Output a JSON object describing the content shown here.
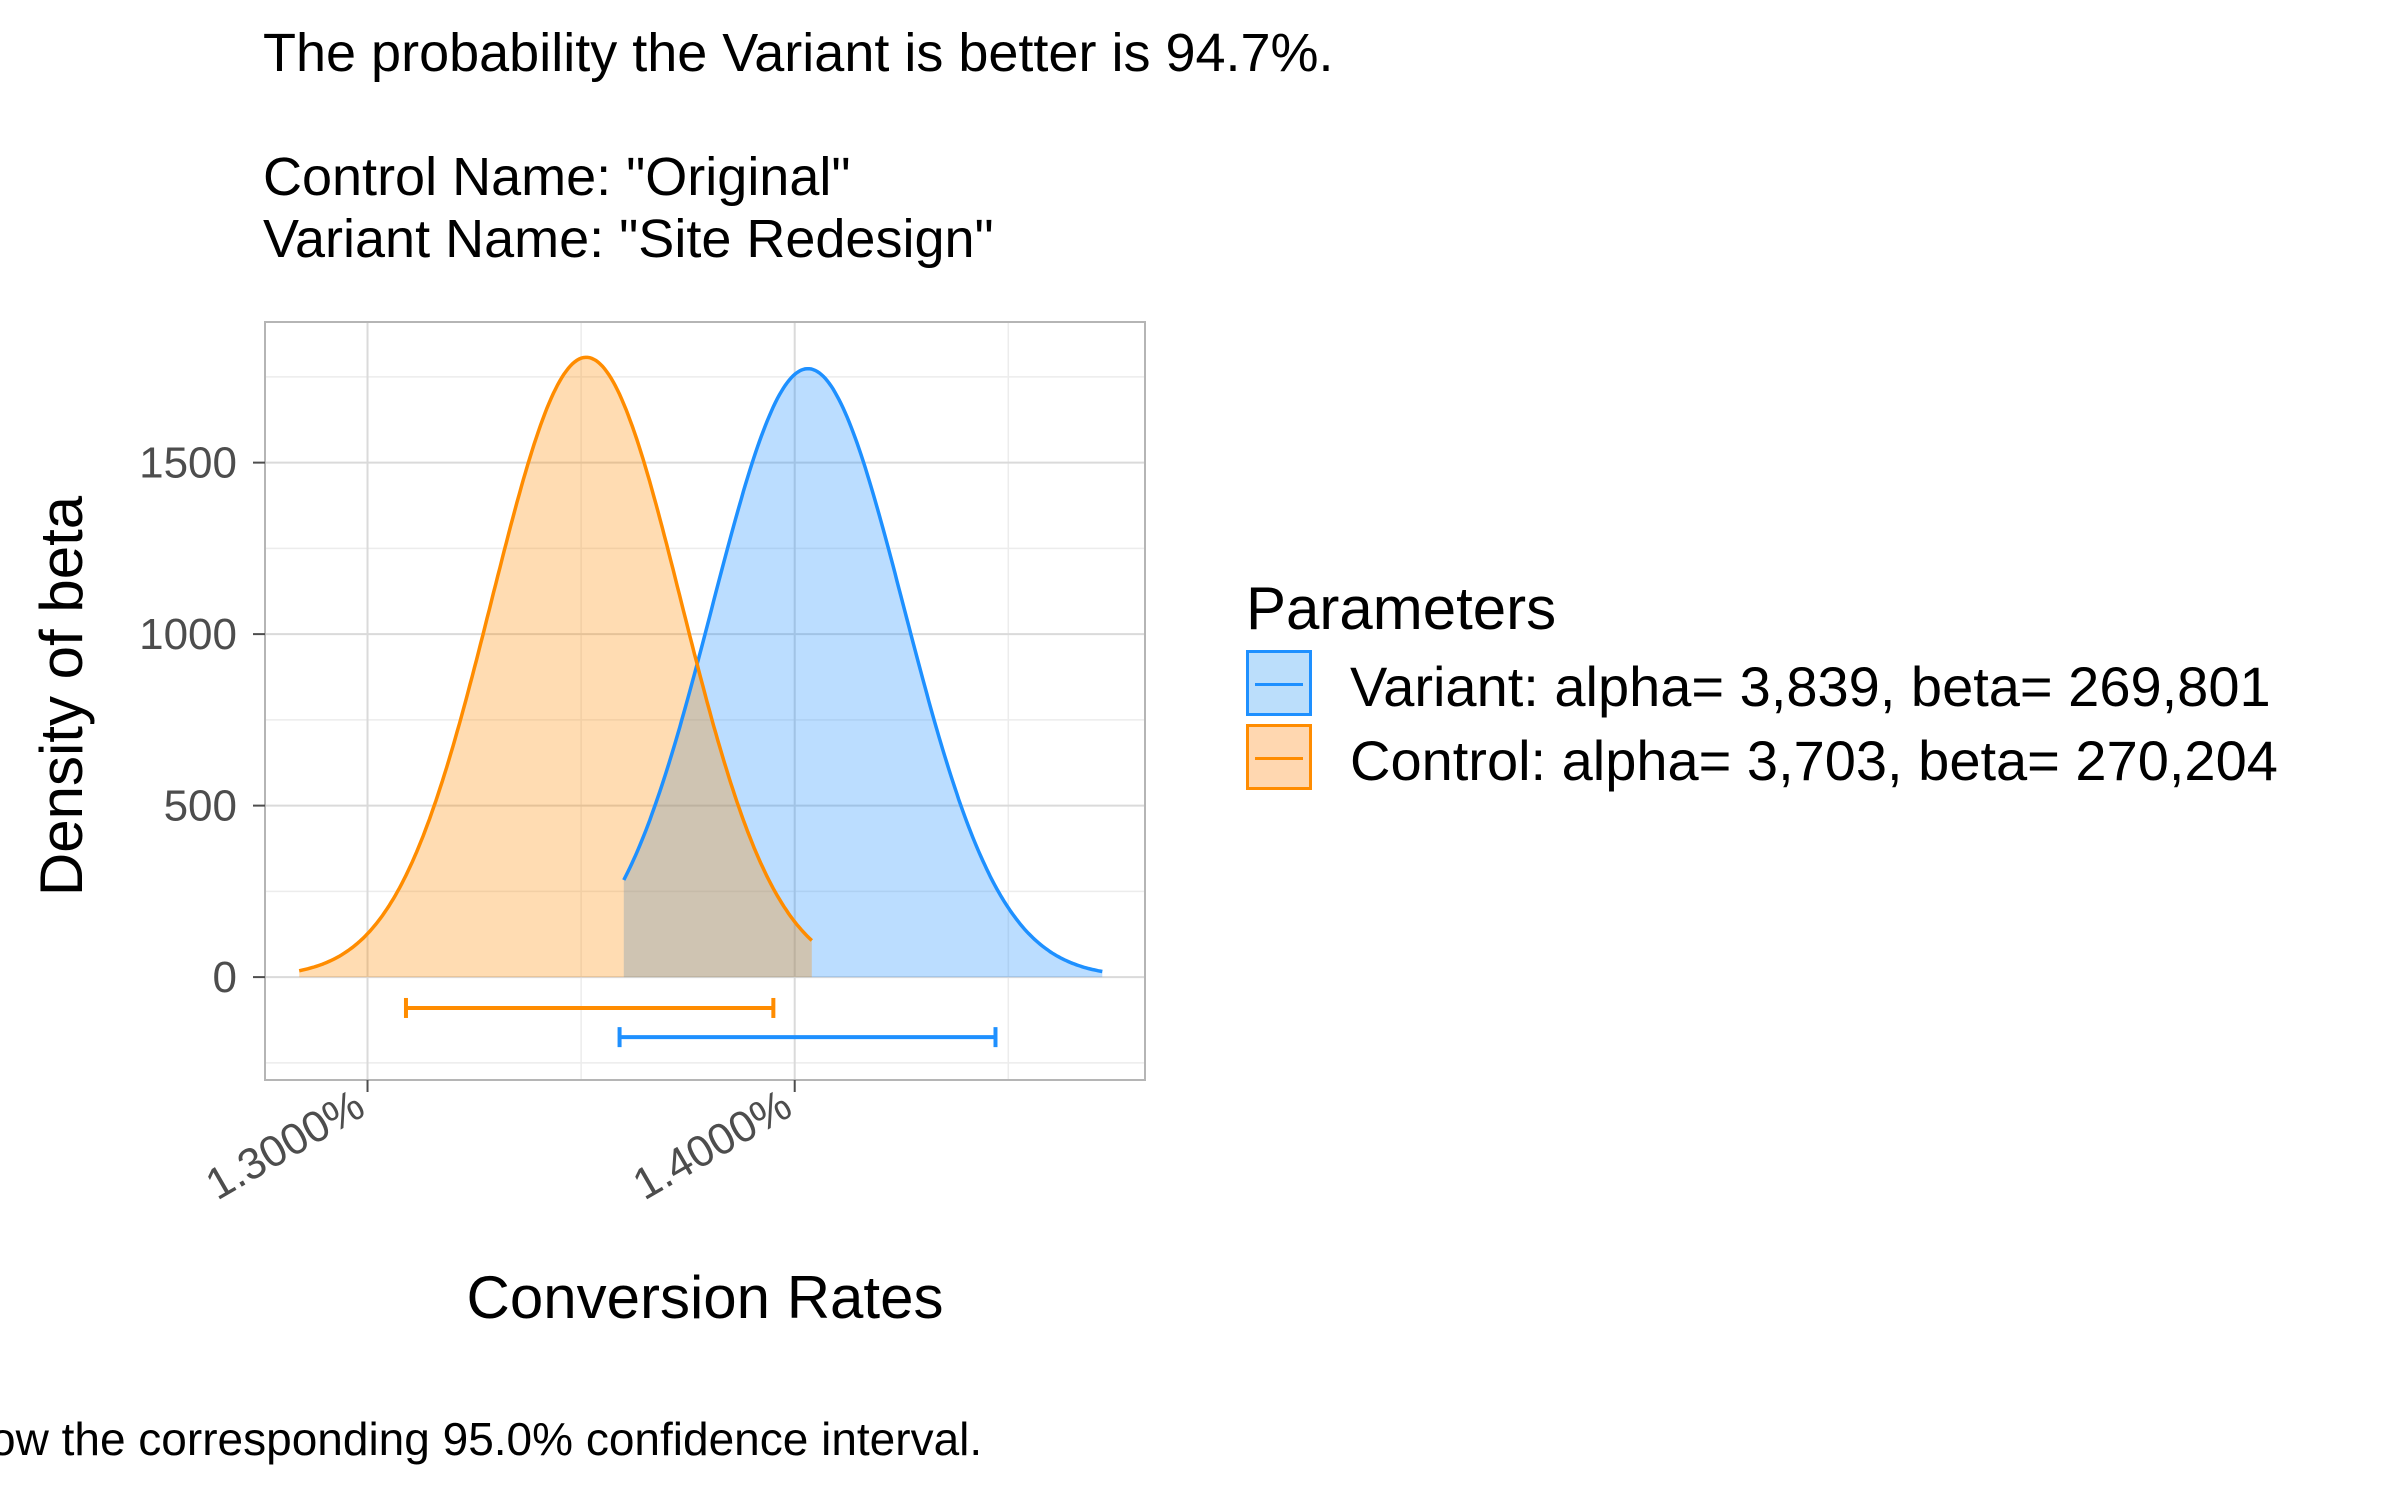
{
  "title": {
    "line1": "The probability the Variant is better is 94.7%.",
    "line2": "Control Name: \"Original\"",
    "line3": "Variant Name: \"Site Redesign\""
  },
  "caption": "ow the corresponding 95.0% confidence interval.",
  "legend": {
    "title": "Parameters",
    "items": [
      {
        "label": "Variant: alpha= 3,839, beta= 269,801",
        "color": "#1E90FF",
        "fill": "#BBDEFB"
      },
      {
        "label": "Control: alpha= 3,703, beta= 270,204",
        "color": "#FF8C00",
        "fill": "#FFD7B0"
      }
    ]
  },
  "chart_data": {
    "type": "area",
    "xlabel": "Conversion Rates",
    "ylabel": "Density of beta",
    "xlim": [
      1.276,
      1.482
    ],
    "ylim": [
      -300,
      1910
    ],
    "x_ticks": [
      1.3,
      1.4
    ],
    "x_tick_labels": [
      "1.3000%",
      "1.4000%"
    ],
    "y_ticks": [
      0,
      500,
      1000,
      1500
    ],
    "y_tick_labels": [
      "0",
      "500",
      "1000",
      "1500"
    ],
    "grid": true,
    "legend_position": "right",
    "series": [
      {
        "name": "Variant: alpha= 3,839, beta= 269,801",
        "color": "#1E90FF",
        "fill": "#BBDEFB",
        "mean": 1.4031,
        "sd": 0.0225,
        "peak": 1774,
        "x_range": [
          1.36,
          1.472
        ],
        "ci": [
          1.359,
          1.447
        ],
        "ci_y": -175
      },
      {
        "name": "Control: alpha= 3,703, beta= 270,204",
        "color": "#FF8C00",
        "fill": "#FFD7B0",
        "mean": 1.3512,
        "sd": 0.0222,
        "peak": 1807,
        "x_range": [
          1.284,
          1.404
        ],
        "ci": [
          1.309,
          1.395
        ],
        "ci_y": -90
      }
    ]
  }
}
